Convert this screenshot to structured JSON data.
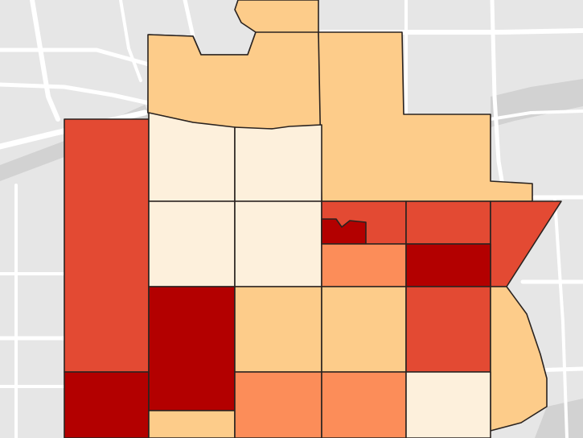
{
  "map": {
    "basemap": {
      "background_color": "#e6e6e6",
      "water_color": "#d2d2d2",
      "road_color": "#ffffff"
    },
    "classes": [
      {
        "id": "c1",
        "color": "#fdf0dc"
      },
      {
        "id": "c2",
        "color": "#fdcc8a"
      },
      {
        "id": "c3",
        "color": "#fc8d59"
      },
      {
        "id": "c4",
        "color": "#e34a33"
      },
      {
        "id": "c5",
        "color": "#b30000"
      }
    ],
    "regions": [
      {
        "name": "tract-north-center",
        "class": "c2"
      },
      {
        "name": "tract-northwest",
        "class": "c2"
      },
      {
        "name": "tract-northeast",
        "class": "c2"
      },
      {
        "name": "tract-west-strip",
        "class": "c4"
      },
      {
        "name": "tract-west-south",
        "class": "c5"
      },
      {
        "name": "tract-r1-c1",
        "class": "c1"
      },
      {
        "name": "tract-r1-c2",
        "class": "c1"
      },
      {
        "name": "tract-r2-c1",
        "class": "c1"
      },
      {
        "name": "tract-r2-c2",
        "class": "c1"
      },
      {
        "name": "tract-r2-c3",
        "class": "c4"
      },
      {
        "name": "tract-r2-c3-notch",
        "class": "c5"
      },
      {
        "name": "tract-r2-c4",
        "class": "c4"
      },
      {
        "name": "tract-east-wedge",
        "class": "c4"
      },
      {
        "name": "tract-r2b-c3",
        "class": "c3"
      },
      {
        "name": "tract-r2b-c4",
        "class": "c5"
      },
      {
        "name": "tract-r3-c1",
        "class": "c5"
      },
      {
        "name": "tract-r3-c2",
        "class": "c2"
      },
      {
        "name": "tract-r3-c3",
        "class": "c2"
      },
      {
        "name": "tract-r3-c4",
        "class": "c4"
      },
      {
        "name": "tract-east-tail",
        "class": "c2"
      },
      {
        "name": "tract-r4-c1",
        "class": "c2"
      },
      {
        "name": "tract-r4-c2",
        "class": "c3"
      },
      {
        "name": "tract-r4-c3",
        "class": "c3"
      },
      {
        "name": "tract-r4-c4",
        "class": "c1"
      }
    ]
  }
}
